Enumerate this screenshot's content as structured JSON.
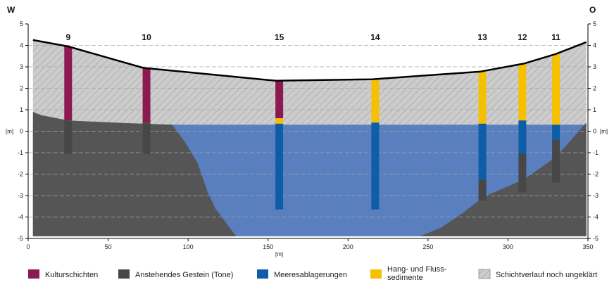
{
  "chart_data": {
    "type": "geological-cross-section",
    "direction_left": "W",
    "direction_right": "O",
    "x_axis": {
      "min": 0,
      "max": 350,
      "ticks": [
        0,
        50,
        100,
        150,
        200,
        250,
        300,
        350
      ],
      "unit": "[m]"
    },
    "y_axis": {
      "min": -5,
      "max": 5,
      "ticks": [
        5,
        4,
        3,
        2,
        1,
        0,
        -1,
        -2,
        -3,
        -4,
        -5
      ],
      "tick_labels": [
        "5",
        "4",
        "3",
        "2",
        "1",
        "0",
        "-1",
        "-2",
        "-3",
        "-4",
        "-5"
      ],
      "unit": "[m]"
    },
    "colors": {
      "kultur": "#8c1a52",
      "gestein": "#474747",
      "meer": "#0e5ea7",
      "hang": "#f5c000",
      "ungeklaert": "#cccccc",
      "water": "#5a7fbf",
      "surface": "#000000"
    },
    "surface_profile": [
      [
        3,
        4.25
      ],
      [
        25,
        3.95
      ],
      [
        72,
        2.95
      ],
      [
        155,
        2.35
      ],
      [
        215,
        2.42
      ],
      [
        283,
        2.78
      ],
      [
        310,
        3.15
      ],
      [
        330,
        3.6
      ],
      [
        349,
        4.15
      ]
    ],
    "bedrock_west": [
      [
        3,
        0.9
      ],
      [
        8,
        0.75
      ],
      [
        25,
        0.5
      ],
      [
        60,
        0.38
      ],
      [
        90,
        0.3
      ],
      [
        98,
        -0.5
      ],
      [
        106,
        -1.5
      ],
      [
        112,
        -2.8
      ],
      [
        117,
        -3.6
      ],
      [
        130,
        -4.9
      ],
      [
        3,
        -4.9
      ]
    ],
    "bedrock_east": [
      [
        245,
        -4.9
      ],
      [
        258,
        -4.5
      ],
      [
        272,
        -3.8
      ],
      [
        285,
        -3.05
      ],
      [
        310,
        -2.25
      ],
      [
        330,
        -1.2
      ],
      [
        349,
        0.4
      ],
      [
        349,
        -4.9
      ]
    ],
    "sea_level": 0.3,
    "boreholes": [
      {
        "label": "9",
        "x": 25,
        "segments": [
          {
            "layer": "kultur",
            "top": 3.95,
            "bottom": 0.5
          },
          {
            "layer": "gestein",
            "top": 0.5,
            "bottom": -1.05
          }
        ]
      },
      {
        "label": "10",
        "x": 74,
        "segments": [
          {
            "layer": "kultur",
            "top": 2.95,
            "bottom": 0.4
          },
          {
            "layer": "gestein",
            "top": 0.4,
            "bottom": -1.05
          }
        ]
      },
      {
        "label": "15",
        "x": 157,
        "segments": [
          {
            "layer": "kultur",
            "top": 2.35,
            "bottom": 0.6
          },
          {
            "layer": "hang",
            "top": 0.6,
            "bottom": 0.35
          },
          {
            "layer": "meer",
            "top": 0.35,
            "bottom": -3.65
          }
        ]
      },
      {
        "label": "14",
        "x": 217,
        "segments": [
          {
            "layer": "hang",
            "top": 2.42,
            "bottom": 0.4
          },
          {
            "layer": "meer",
            "top": 0.4,
            "bottom": -3.65
          }
        ]
      },
      {
        "label": "13",
        "x": 284,
        "segments": [
          {
            "layer": "hang",
            "top": 2.78,
            "bottom": 0.35
          },
          {
            "layer": "meer",
            "top": 0.35,
            "bottom": -2.25
          },
          {
            "layer": "gestein",
            "top": -2.25,
            "bottom": -3.25
          }
        ]
      },
      {
        "label": "12",
        "x": 309,
        "segments": [
          {
            "layer": "hang",
            "top": 3.15,
            "bottom": 0.5
          },
          {
            "layer": "meer",
            "top": 0.5,
            "bottom": -1.05
          },
          {
            "layer": "gestein",
            "top": -1.05,
            "bottom": -2.85
          }
        ]
      },
      {
        "label": "11",
        "x": 330,
        "segments": [
          {
            "layer": "hang",
            "top": 3.6,
            "bottom": 0.3
          },
          {
            "layer": "meer",
            "top": 0.3,
            "bottom": -0.4
          },
          {
            "layer": "gestein",
            "top": -0.4,
            "bottom": -2.4
          }
        ]
      }
    ],
    "legend": [
      {
        "key": "kultur",
        "label": "Kulturschichten"
      },
      {
        "key": "gestein",
        "label": "Anstehendes Gestein (Tone)"
      },
      {
        "key": "meer",
        "label": "Meeresablagerungen"
      },
      {
        "key": "hang",
        "label": "Hang- und Fluss-\nsedimente"
      },
      {
        "key": "ungeklaert",
        "label": "Schichtverlauf noch ungeklärt"
      }
    ]
  }
}
